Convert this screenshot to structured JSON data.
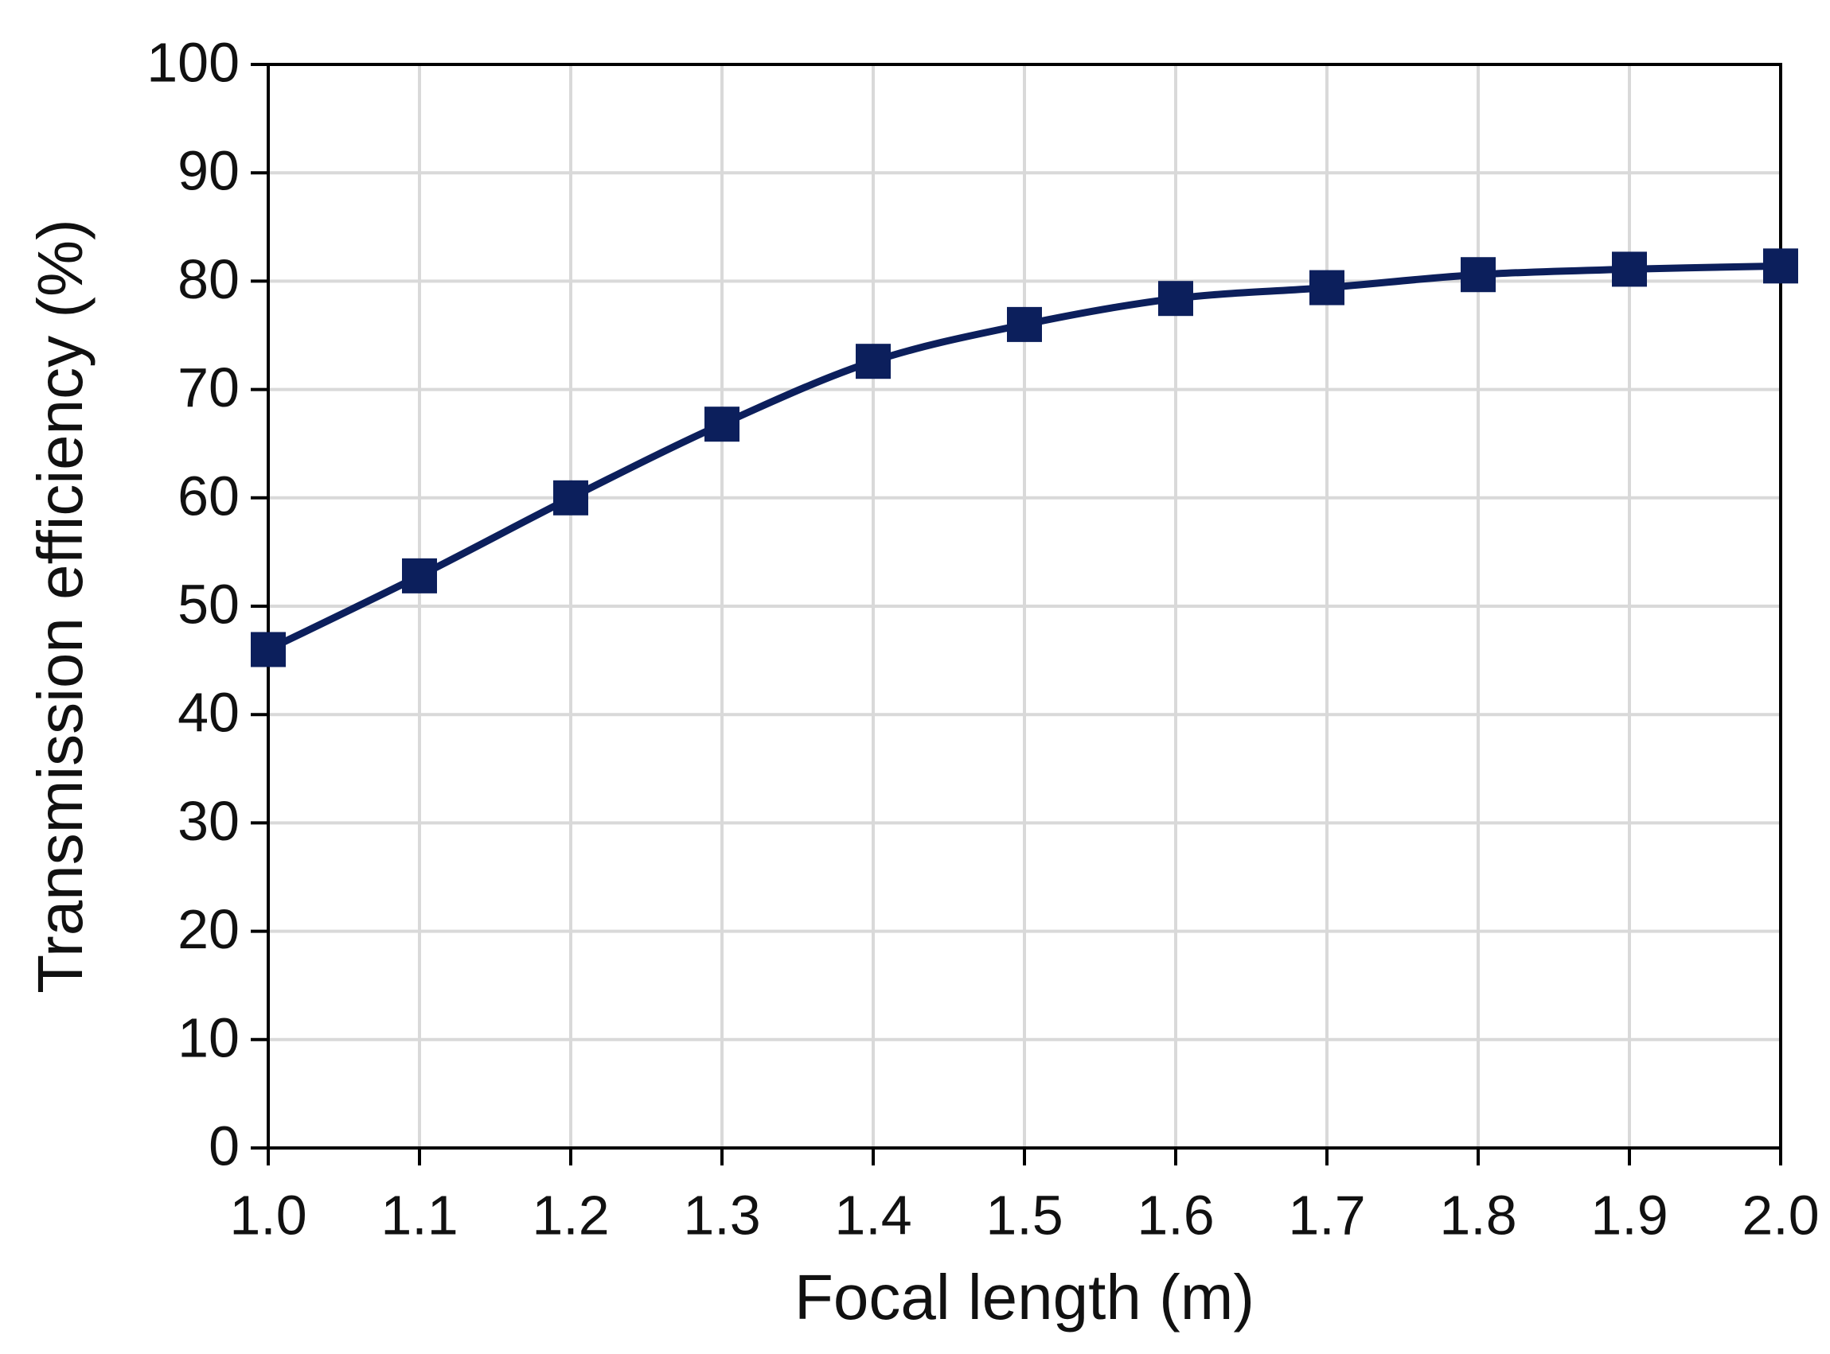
{
  "chart_data": {
    "type": "line",
    "x_label": "Focal length (m)",
    "y_label": "Transmission efficiency (%)",
    "x": [
      1.0,
      1.1,
      1.2,
      1.3,
      1.4,
      1.5,
      1.6,
      1.7,
      1.8,
      1.9,
      2.0
    ],
    "values": [
      46,
      52.8,
      60,
      66.8,
      72.6,
      76,
      78.4,
      79.4,
      80.6,
      81.1,
      81.4
    ],
    "color": "#0c1f5c",
    "marker": "square",
    "xlim": [
      1.0,
      2.0
    ],
    "xticks": [
      {
        "value": 1.0,
        "label": "1.0"
      },
      1.1,
      1.2,
      1.3,
      1.4,
      1.5,
      1.6,
      1.7,
      1.8,
      1.9,
      {
        "value": 2.0,
        "label": "2.0"
      }
    ],
    "ylim": [
      0,
      100
    ],
    "yticks": [
      0,
      10,
      20,
      30,
      40,
      50,
      60,
      70,
      80,
      90,
      100
    ],
    "grid": true
  }
}
